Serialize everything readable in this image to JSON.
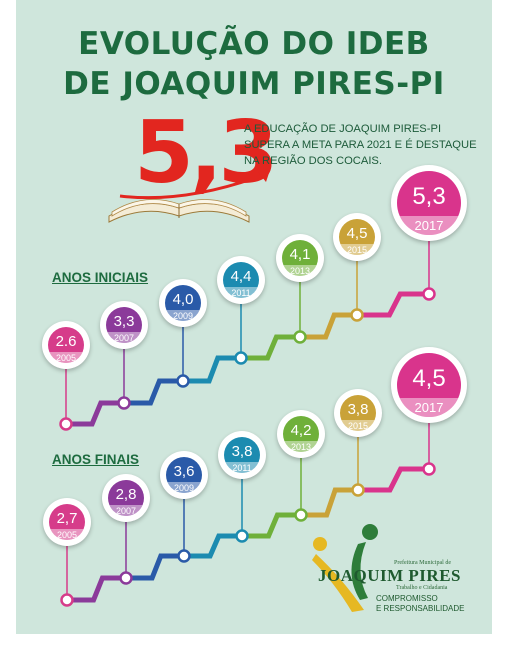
{
  "title": {
    "line1": "EVOLUÇÃO DO IDEB",
    "line2": "DE JOAQUIM PIRES-PI"
  },
  "highlight": {
    "value": "5,3",
    "text_line1": "A EDUCAÇÃO DE JOAQUIM PIRES-PI",
    "text_line2": "SUPERA A META PARA 2021 E É DESTAQUE",
    "text_line3": "NA REGIÃO DOS COCAIS."
  },
  "sections": {
    "iniciais": {
      "label": "ANOS INICIAIS",
      "items": [
        {
          "value": "2.6",
          "year": "2005",
          "color": "#d63c8a"
        },
        {
          "value": "3,3",
          "year": "2007",
          "color": "#8b3a9a"
        },
        {
          "value": "4,0",
          "year": "2009",
          "color": "#2a5aa8"
        },
        {
          "value": "4,4",
          "year": "2011",
          "color": "#1c8bb0"
        },
        {
          "value": "4,1",
          "year": "2013",
          "color": "#6fb03a"
        },
        {
          "value": "4,5",
          "year": "2015",
          "color": "#c9a238"
        },
        {
          "value": "5,3",
          "year": "2017",
          "color": "#d9348c"
        }
      ]
    },
    "finais": {
      "label": "ANOS FINAIS",
      "items": [
        {
          "value": "2,7",
          "year": "2005",
          "color": "#d63c8a"
        },
        {
          "value": "2,8",
          "year": "2007",
          "color": "#8b3a9a"
        },
        {
          "value": "3,6",
          "year": "2009",
          "color": "#2a5aa8"
        },
        {
          "value": "3,8",
          "year": "2011",
          "color": "#1c8bb0"
        },
        {
          "value": "4,2",
          "year": "2013",
          "color": "#6fb03a"
        },
        {
          "value": "3,8",
          "year": "2015",
          "color": "#c9a238"
        },
        {
          "value": "4,5",
          "year": "2017",
          "color": "#d9348c"
        }
      ]
    }
  },
  "logo": {
    "top_text": "Prefeitura Municipal de",
    "name": "JOAQUIM PIRES",
    "tagline": "Trabalho e Cidadania",
    "slogan_line1": "COMPROMISSO",
    "slogan_line2": "E RESPONSABILIDADE"
  }
}
